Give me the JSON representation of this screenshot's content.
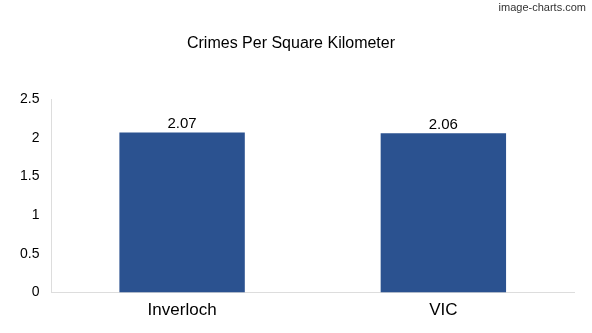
{
  "chart_data": {
    "type": "bar",
    "title": "Crimes Per Square Kilometer",
    "categories": [
      "Inverloch",
      "VIC"
    ],
    "values": [
      2.07,
      2.06
    ],
    "color": "#2b5290",
    "ylim": [
      0,
      2.5
    ],
    "yticks": [
      0,
      0.5,
      1,
      1.5,
      2,
      2.5
    ],
    "grid": false,
    "data_labels": true,
    "annotations": [
      "image-charts.com"
    ]
  }
}
